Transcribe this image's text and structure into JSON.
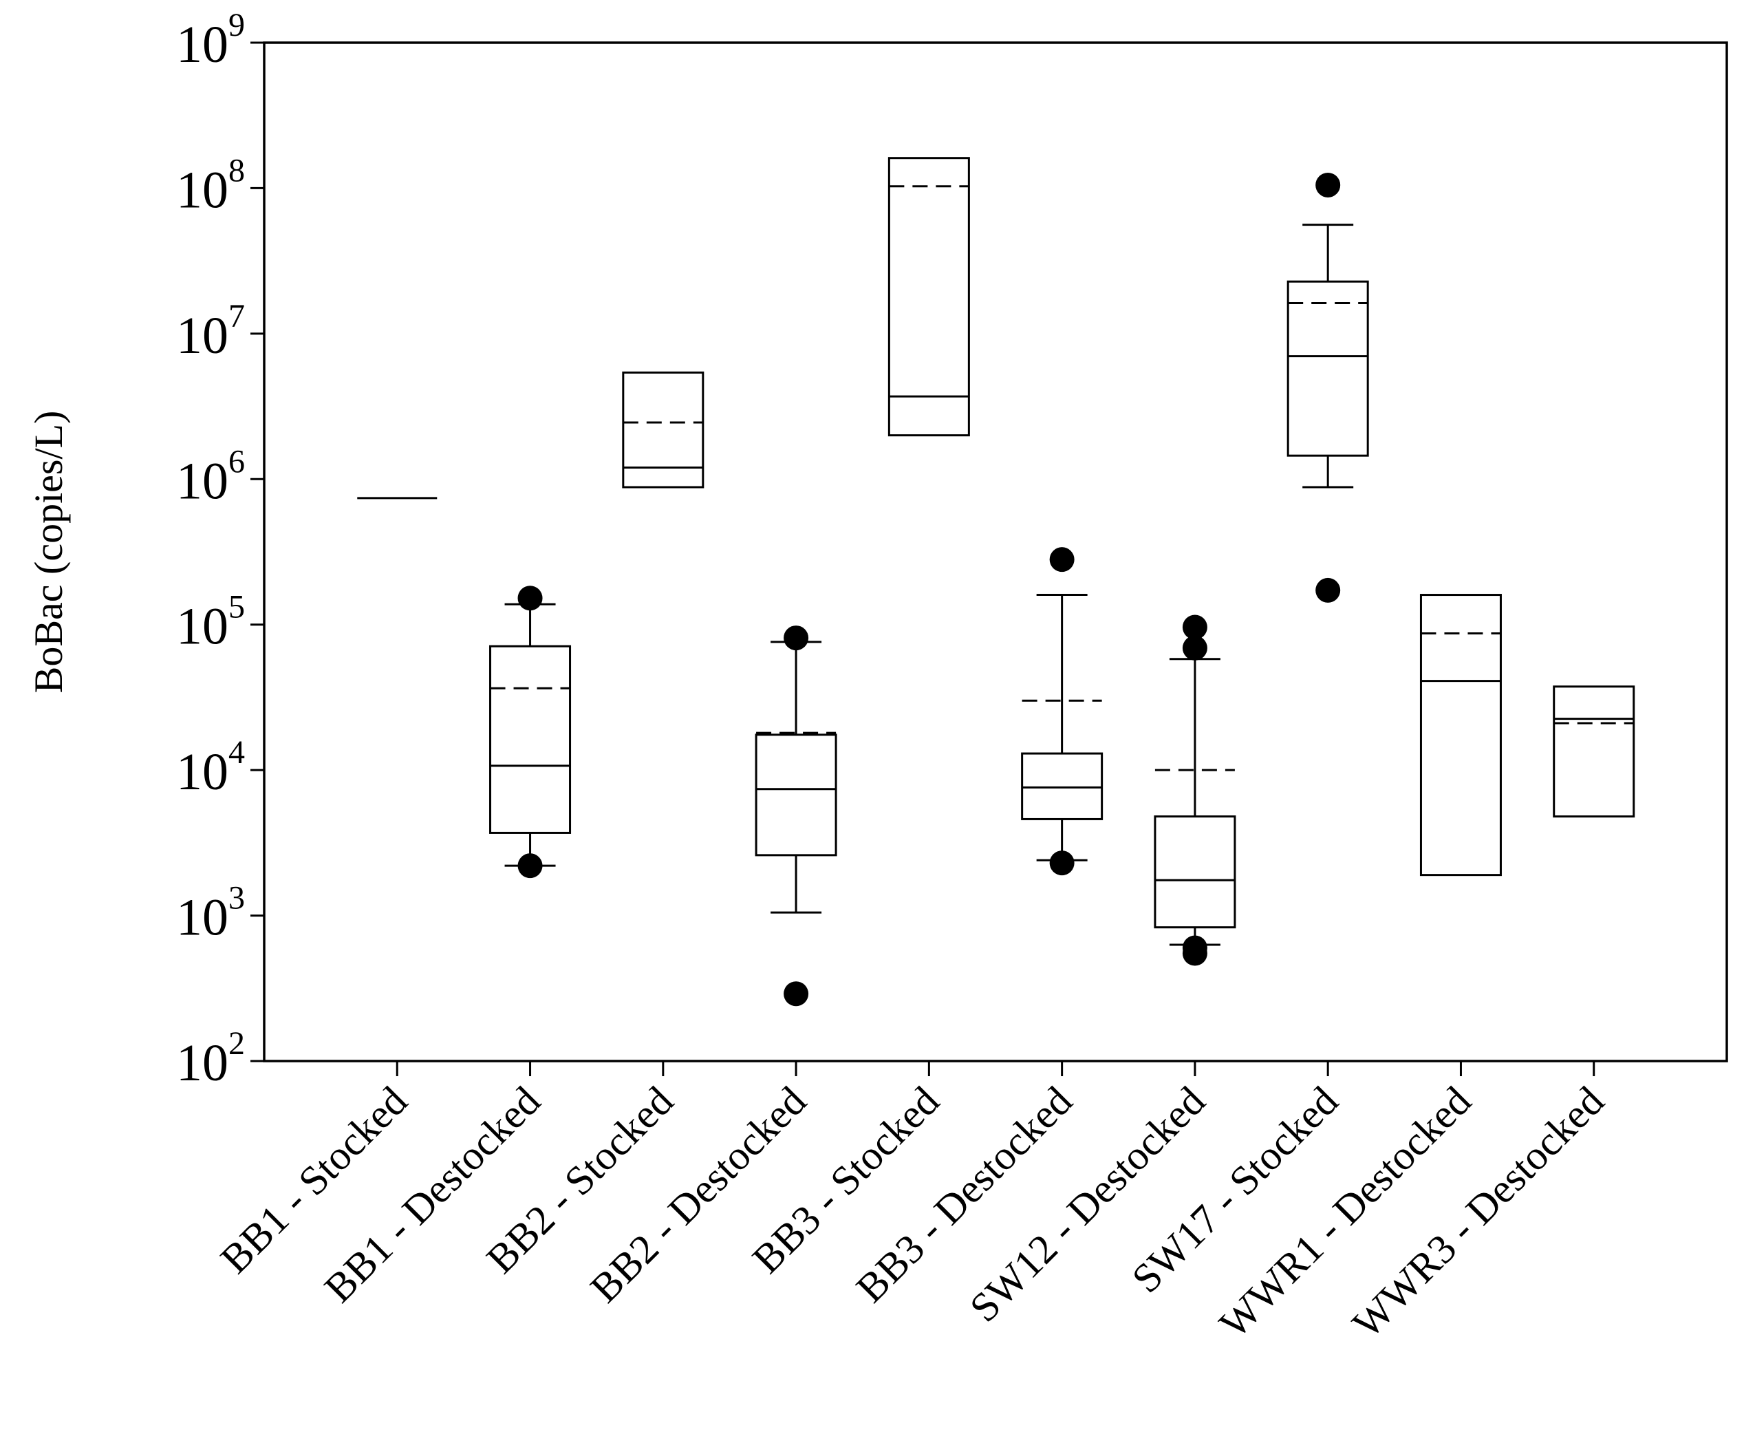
{
  "chart_data": {
    "type": "box",
    "title": "",
    "xlabel": "",
    "ylabel": "BoBac (copies/L)",
    "yscale": "log",
    "ylim": [
      100,
      1000000000
    ],
    "yticks": [
      {
        "base": "10",
        "exp": "2"
      },
      {
        "base": "10",
        "exp": "3"
      },
      {
        "base": "10",
        "exp": "4"
      },
      {
        "base": "10",
        "exp": "5"
      },
      {
        "base": "10",
        "exp": "6"
      },
      {
        "base": "10",
        "exp": "7"
      },
      {
        "base": "10",
        "exp": "8"
      },
      {
        "base": "10",
        "exp": "9"
      }
    ],
    "legend": "none",
    "grid": false,
    "median_style": "solid",
    "mean_style": "dashed",
    "categories": [
      "BB1 - Stocked",
      "BB1 - Destocked",
      "BB2 - Stocked",
      "BB2 - Destocked",
      "BB3 - Stocked",
      "BB3 - Destocked",
      "SW12 - Destocked",
      "SW17 - Stocked",
      "WWR1 - Destocked",
      "WWR3 - Destocked"
    ],
    "boxes": [
      {
        "category": "BB1 - Stocked",
        "median": 740000,
        "mean": 740000,
        "q1": 740000,
        "q3": 740000,
        "whisker_low": null,
        "whisker_high": null,
        "outliers": []
      },
      {
        "category": "BB1 - Destocked",
        "median": 10700,
        "mean": 36500,
        "q1": 3700,
        "q3": 71000,
        "whisker_low": 2200,
        "whisker_high": 138000,
        "outliers": [
          2200,
          152000
        ]
      },
      {
        "category": "BB2 - Stocked",
        "median": 1200000,
        "mean": 2450000,
        "q1": 880000,
        "q3": 5400000,
        "whisker_low": null,
        "whisker_high": null,
        "outliers": []
      },
      {
        "category": "BB2 - Destocked",
        "median": 7400,
        "mean": 18000,
        "q1": 2600,
        "q3": 17500,
        "whisker_low": 1050,
        "whisker_high": 76000,
        "outliers": [
          290,
          81000
        ]
      },
      {
        "category": "BB3 - Stocked",
        "median": 3700000,
        "mean": 103000000,
        "q1": 2000000,
        "q3": 161000000,
        "whisker_low": null,
        "whisker_high": null,
        "outliers": []
      },
      {
        "category": "BB3 - Destocked",
        "median": 7600,
        "mean": 30000,
        "q1": 4600,
        "q3": 13000,
        "whisker_low": 2400,
        "whisker_high": 160000,
        "outliers": [
          2300,
          280000
        ]
      },
      {
        "category": "SW12 - Destocked",
        "median": 1750,
        "mean": 10000,
        "q1": 830,
        "q3": 4800,
        "whisker_low": 630,
        "whisker_high": 58000,
        "outliers": [
          550,
          600,
          69000,
          96000
        ]
      },
      {
        "category": "SW17 - Stocked",
        "median": 7000000,
        "mean": 16200000,
        "q1": 1450000,
        "q3": 22800000,
        "whisker_low": 880000,
        "whisker_high": 56000000,
        "outliers": [
          172000,
          105000000
        ]
      },
      {
        "category": "WWR1 - Destocked",
        "median": 41000,
        "mean": 87000,
        "q1": 1900,
        "q3": 160000,
        "whisker_low": null,
        "whisker_high": null,
        "outliers": []
      },
      {
        "category": "WWR3 - Destocked",
        "median": 22500,
        "mean": 21000,
        "q1": 4800,
        "q3": 37500,
        "whisker_low": null,
        "whisker_high": null,
        "outliers": []
      }
    ]
  }
}
